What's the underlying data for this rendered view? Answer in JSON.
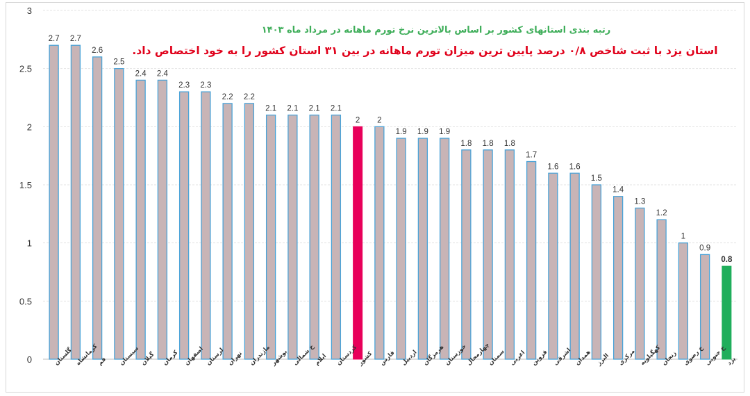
{
  "chart_data": {
    "type": "bar",
    "title": "رتبه بندی استانهای کشور بر اساس بالاترین نرخ تورم ماهانه در مرداد ماه ۱۴۰۳",
    "subtitle": "استان یزد با ثبت شاخص ۰/۸ درصد پایین ترین میزان تورم ماهانه در بین ۳۱ استان کشور را به خود اختصاص داد.",
    "categories": [
      "گلستان",
      "کرمانشاه",
      "قم",
      "سیستان",
      "گیلان",
      "کرمان",
      "اصفهان",
      "لرستان",
      "تهران",
      "مازندران",
      "بوشهر",
      "خ شمالی",
      "ایلام",
      "کردستان",
      "کشور",
      "فارس",
      "اردبیل",
      "هرمزگان",
      "خوزستان",
      "چهارمحال",
      "سمنان",
      "اغربی",
      "قزوین",
      "اشرقی",
      "همدان",
      "البرز",
      "مرکزی",
      "کهگیلویه",
      "زنجان",
      "خ رضوی",
      "خ جنوبی",
      "یزد"
    ],
    "values": [
      2.7,
      2.7,
      2.6,
      2.5,
      2.4,
      2.4,
      2.3,
      2.3,
      2.2,
      2.2,
      2.1,
      2.1,
      2.1,
      2.1,
      2,
      2,
      1.9,
      1.9,
      1.9,
      1.8,
      1.8,
      1.8,
      1.7,
      1.6,
      1.6,
      1.5,
      1.4,
      1.3,
      1.2,
      1,
      0.9,
      0.8
    ],
    "data_labels": [
      "2.7",
      "2.7",
      "2.6",
      "2.5",
      "2.4",
      "2.4",
      "2.3",
      "2.3",
      "2.2",
      "2.2",
      "2.1",
      "2.1",
      "2.1",
      "2.1",
      "2",
      "2",
      "1.9",
      "1.9",
      "1.9",
      "1.8",
      "1.8",
      "1.8",
      "1.7",
      "1.6",
      "1.6",
      "1.5",
      "1.4",
      "1.3",
      "1.2",
      "1",
      "0.9",
      "0.8"
    ],
    "highlight": {
      "کشور": "#e8005a",
      "یزد": "#1fae5b"
    },
    "bar_color": "#c8b4b6",
    "bar_border_color": "#4aa3d8",
    "ylim": [
      0,
      3
    ],
    "yticks": [
      "0",
      "0.5",
      "1",
      "1.5",
      "2",
      "2.5",
      "3"
    ],
    "xlabel": "",
    "ylabel": "",
    "grid": true,
    "legend": "none"
  }
}
